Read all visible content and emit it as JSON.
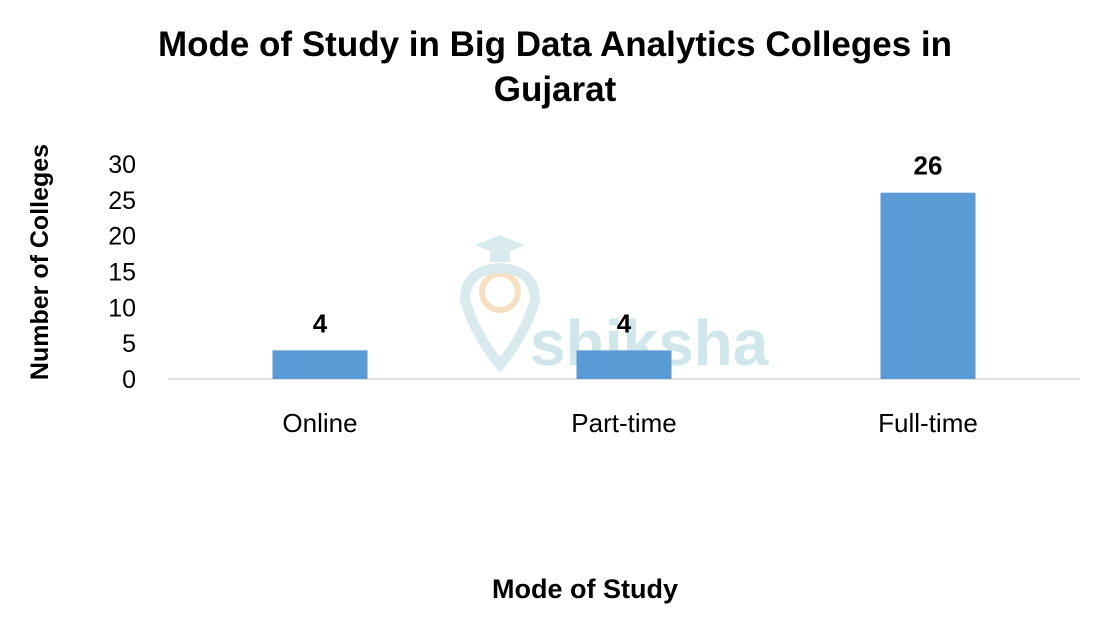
{
  "chart_data": {
    "type": "bar",
    "title": "Mode of Study in Big Data Analytics Colleges in Gujarat",
    "xlabel": "Mode of Study",
    "ylabel": "Number of Colleges",
    "categories": [
      "Online",
      "Part-time",
      "Full-time"
    ],
    "values": [
      4,
      4,
      26
    ],
    "data_labels": [
      "4",
      "4",
      "26"
    ],
    "ylim": [
      0,
      30
    ],
    "yticks": [
      0,
      5,
      10,
      15,
      20,
      25,
      30
    ],
    "grid": false,
    "legend": "none",
    "bar_color": "#5b9bd5"
  },
  "watermark": {
    "text": "shiksha",
    "color": "#cfe6ea",
    "accent": "#f6d9b3",
    "icon": "graduation-cap-icon"
  }
}
